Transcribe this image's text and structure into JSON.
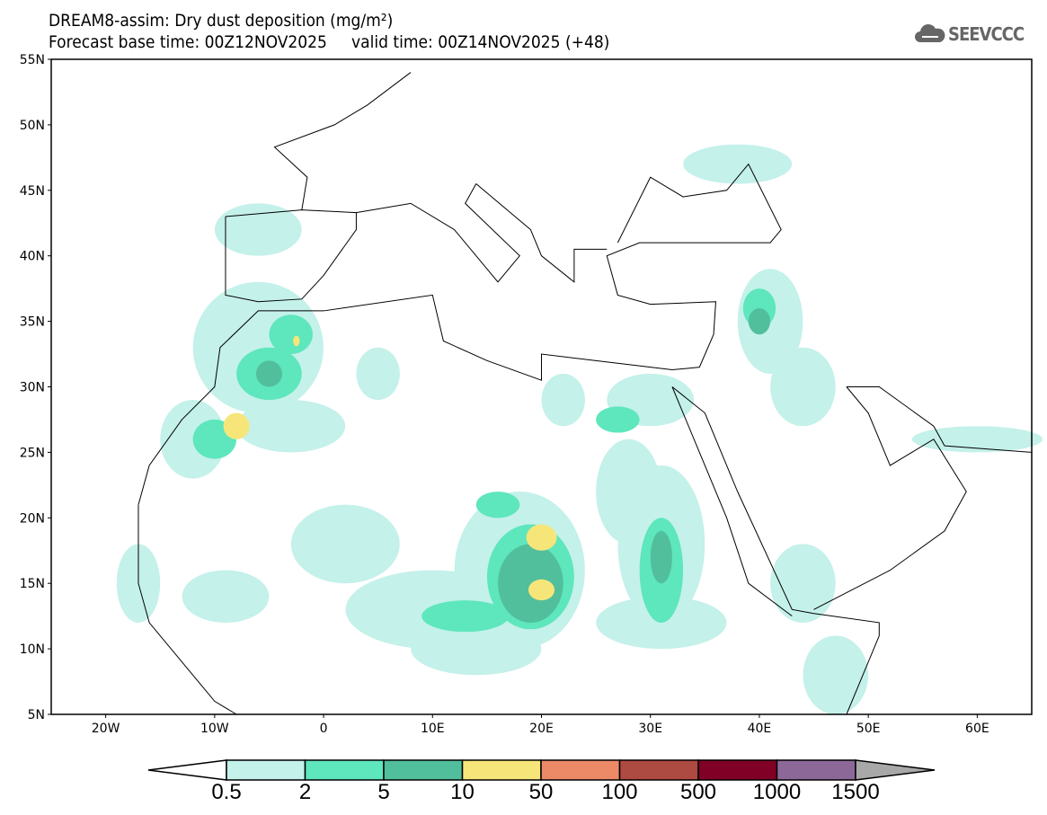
{
  "title_line1": "DREAM8-assim: Dry dust deposition (mg/m²)",
  "title_line2": "Forecast base time: 00Z12NOV2025     valid time: 00Z14NOV2025 (+48)",
  "logo_text": "SEEVCCC",
  "map": {
    "lon_range": [
      -25,
      65
    ],
    "lat_range": [
      5,
      55
    ],
    "lat_ticks": [
      "55N",
      "50N",
      "45N",
      "40N",
      "35N",
      "30N",
      "25N",
      "20N",
      "15N",
      "10N",
      "5N"
    ],
    "lon_ticks": [
      "20W",
      "10W",
      "0",
      "10E",
      "20E",
      "30E",
      "40E",
      "50E",
      "60E"
    ]
  },
  "legend": {
    "labels": [
      "0.5",
      "2",
      "5",
      "10",
      "50",
      "100",
      "500",
      "1000",
      "1500"
    ],
    "colors": [
      "#c4f1ea",
      "#5ee6bd",
      "#52bf9c",
      "#f6e67a",
      "#ec8a68",
      "#ad4a42",
      "#800026",
      "#8c6898",
      "#a8a8a8"
    ]
  }
}
